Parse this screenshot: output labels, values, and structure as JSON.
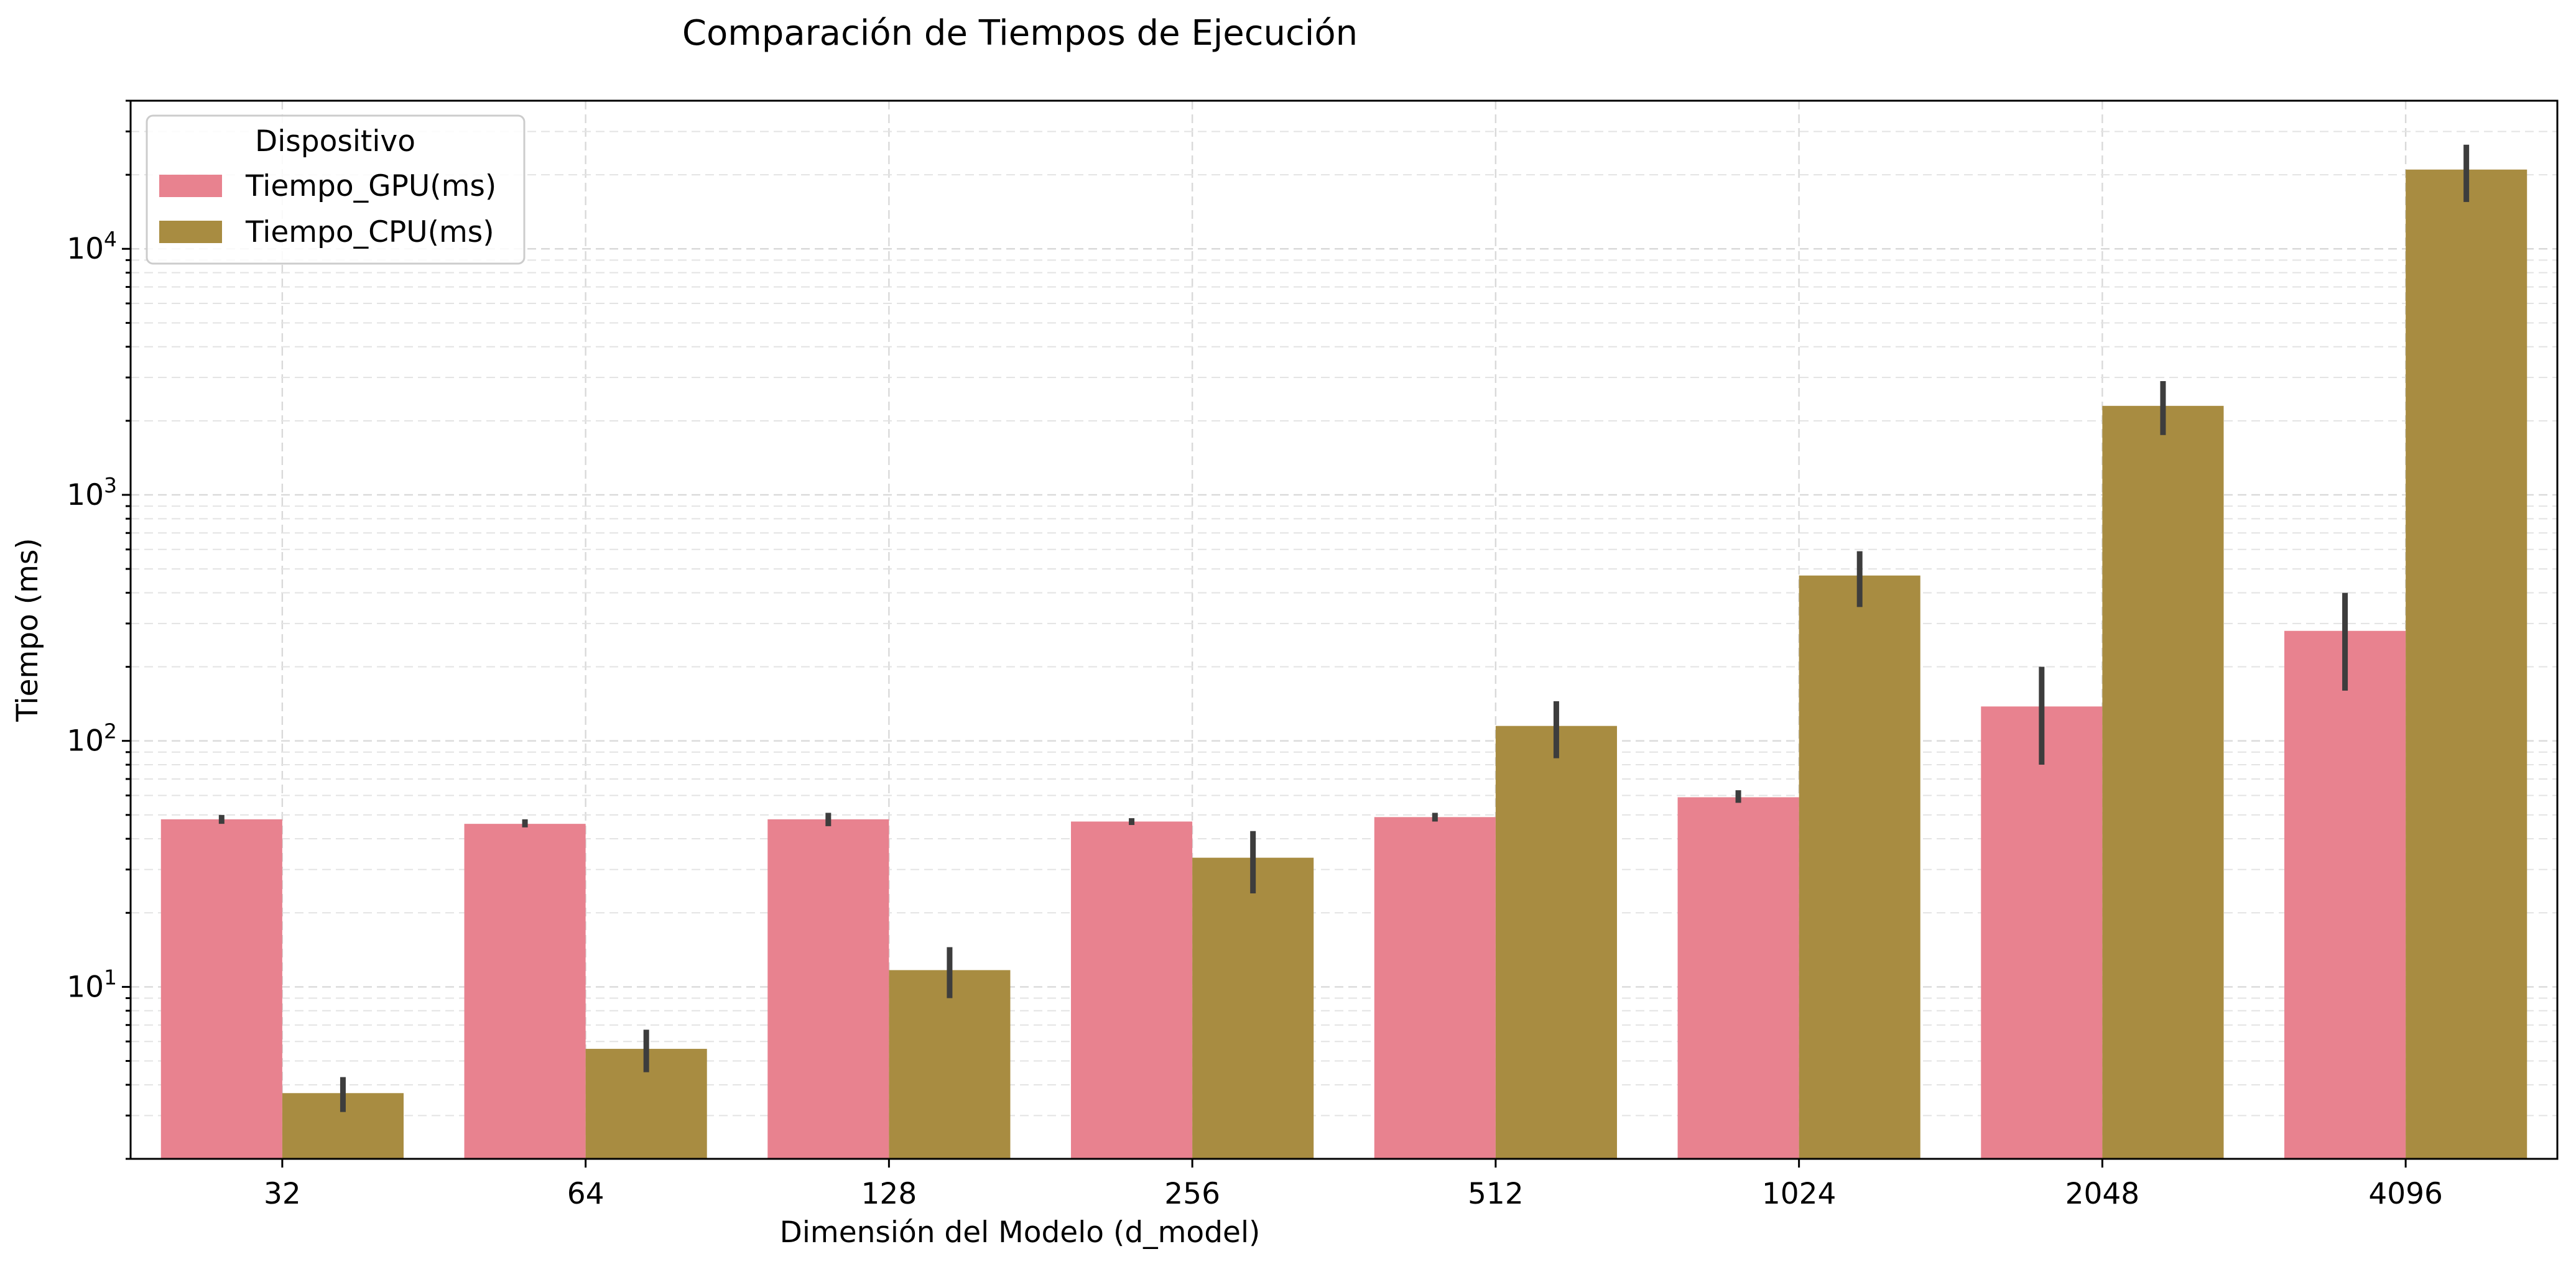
{
  "chart_data": {
    "type": "bar",
    "title": "Comparación de Tiempos de Ejecución",
    "xlabel": "Dimensión del Modelo (d_model)",
    "ylabel": "Tiempo (ms)",
    "yscale": "log",
    "ylim": [
      2,
      40000
    ],
    "grid": true,
    "legend": {
      "title": "Dispositivo",
      "position": "top-left"
    },
    "categories": [
      "32",
      "64",
      "128",
      "256",
      "512",
      "1024",
      "2048",
      "4096"
    ],
    "y_ticks": [
      {
        "value": 10,
        "base": "10",
        "exp": "1"
      },
      {
        "value": 100,
        "base": "10",
        "exp": "2"
      },
      {
        "value": 1000,
        "base": "10",
        "exp": "3"
      },
      {
        "value": 10000,
        "base": "10",
        "exp": "4"
      }
    ],
    "series": [
      {
        "name": "Tiempo_GPU(ms)",
        "color": "#e8828f",
        "values": [
          48,
          46,
          48,
          47,
          49,
          59,
          138,
          280
        ],
        "err_low": [
          46,
          44.5,
          45,
          45.5,
          47,
          56,
          80,
          160
        ],
        "err_high": [
          50,
          48,
          51,
          48.5,
          51,
          63,
          200,
          400
        ]
      },
      {
        "name": "Tiempo_CPU(ms)",
        "color": "#a88c41",
        "values": [
          3.7,
          5.6,
          11.7,
          33.5,
          115,
          470,
          2300,
          21000
        ],
        "err_low": [
          3.1,
          4.5,
          9.0,
          24,
          85,
          350,
          1750,
          15500
        ],
        "err_high": [
          4.3,
          6.7,
          14.5,
          43,
          145,
          590,
          2900,
          26500
        ]
      }
    ]
  }
}
